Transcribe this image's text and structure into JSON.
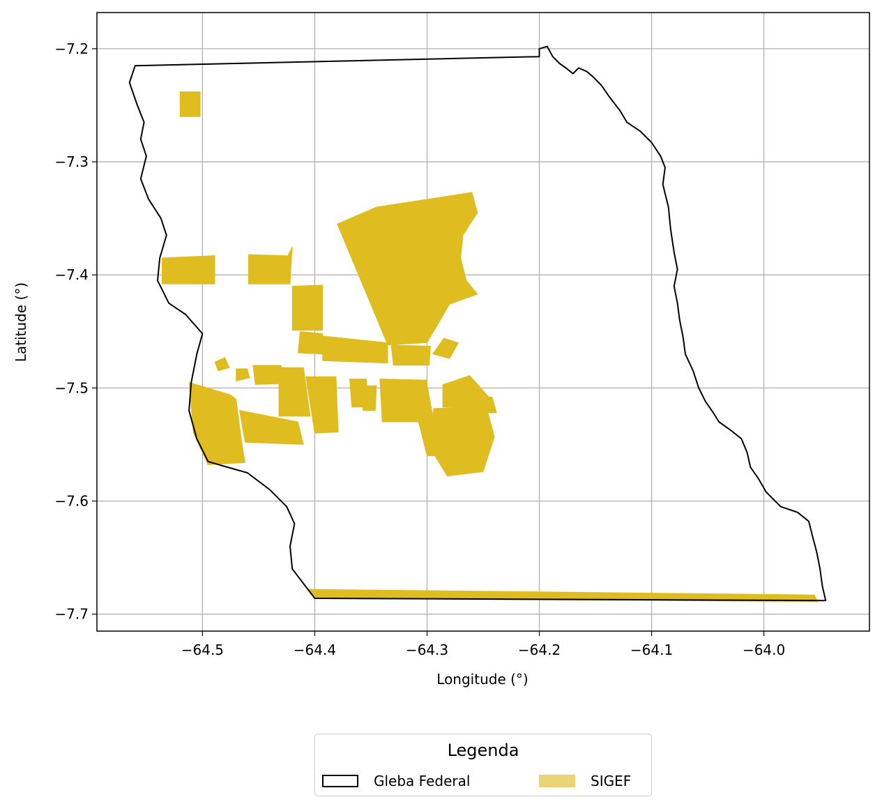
{
  "chart_data": {
    "type": "map",
    "xlabel": "Longitude (°)",
    "ylabel": "Latitude (°)",
    "xlim": [
      -64.594,
      -63.906
    ],
    "ylim": [
      -7.715,
      -7.168
    ],
    "xticks": [
      -64.5,
      -64.4,
      -64.3,
      -64.2,
      -64.1,
      -64.0
    ],
    "yticks": [
      -7.2,
      -7.3,
      -7.4,
      -7.5,
      -7.6,
      -7.7
    ],
    "xtick_labels": [
      "−64.5",
      "−64.4",
      "−64.3",
      "−64.2",
      "−64.1",
      "−64.0"
    ],
    "ytick_labels": [
      "−7.2",
      "−7.3",
      "−7.4",
      "−7.5",
      "−7.6",
      "−7.7"
    ],
    "grid": true,
    "legend_placement": "bottom-center, below plot",
    "layers": [
      {
        "name": "Gleba Federal",
        "style": "outline",
        "color": "#000000",
        "boundary": [
          [
            -64.56,
            -7.215
          ],
          [
            -64.2,
            -7.207
          ],
          [
            -64.2,
            -7.2
          ],
          [
            -64.193,
            -7.198
          ],
          [
            -64.188,
            -7.207
          ],
          [
            -64.182,
            -7.213
          ],
          [
            -64.175,
            -7.218
          ],
          [
            -64.17,
            -7.222
          ],
          [
            -64.165,
            -7.217
          ],
          [
            -64.158,
            -7.22
          ],
          [
            -64.152,
            -7.225
          ],
          [
            -64.145,
            -7.232
          ],
          [
            -64.138,
            -7.242
          ],
          [
            -64.128,
            -7.255
          ],
          [
            -64.122,
            -7.265
          ],
          [
            -64.11,
            -7.273
          ],
          [
            -64.1,
            -7.283
          ],
          [
            -64.092,
            -7.295
          ],
          [
            -64.088,
            -7.305
          ],
          [
            -64.09,
            -7.32
          ],
          [
            -64.085,
            -7.34
          ],
          [
            -64.083,
            -7.36
          ],
          [
            -64.08,
            -7.38
          ],
          [
            -64.077,
            -7.395
          ],
          [
            -64.08,
            -7.41
          ],
          [
            -64.077,
            -7.425
          ],
          [
            -64.075,
            -7.44
          ],
          [
            -64.072,
            -7.455
          ],
          [
            -64.07,
            -7.47
          ],
          [
            -64.063,
            -7.485
          ],
          [
            -64.058,
            -7.5
          ],
          [
            -64.052,
            -7.512
          ],
          [
            -64.045,
            -7.522
          ],
          [
            -64.04,
            -7.53
          ],
          [
            -64.03,
            -7.537
          ],
          [
            -64.02,
            -7.545
          ],
          [
            -64.015,
            -7.557
          ],
          [
            -64.012,
            -7.57
          ],
          [
            -64.005,
            -7.58
          ],
          [
            -63.998,
            -7.592
          ],
          [
            -63.992,
            -7.598
          ],
          [
            -63.985,
            -7.605
          ],
          [
            -63.97,
            -7.61
          ],
          [
            -63.96,
            -7.618
          ],
          [
            -63.957,
            -7.63
          ],
          [
            -63.953,
            -7.645
          ],
          [
            -63.95,
            -7.66
          ],
          [
            -63.948,
            -7.675
          ],
          [
            -63.945,
            -7.688
          ],
          [
            -64.4,
            -7.686
          ],
          [
            -64.42,
            -7.66
          ],
          [
            -64.422,
            -7.64
          ],
          [
            -64.418,
            -7.62
          ],
          [
            -64.425,
            -7.605
          ],
          [
            -64.44,
            -7.59
          ],
          [
            -64.46,
            -7.575
          ],
          [
            -64.478,
            -7.57
          ],
          [
            -64.495,
            -7.565
          ],
          [
            -64.505,
            -7.545
          ],
          [
            -64.512,
            -7.52
          ],
          [
            -64.51,
            -7.495
          ],
          [
            -64.505,
            -7.47
          ],
          [
            -64.5,
            -7.452
          ],
          [
            -64.515,
            -7.435
          ],
          [
            -64.53,
            -7.425
          ],
          [
            -64.54,
            -7.405
          ],
          [
            -64.538,
            -7.385
          ],
          [
            -64.532,
            -7.365
          ],
          [
            -64.537,
            -7.35
          ],
          [
            -64.548,
            -7.333
          ],
          [
            -64.555,
            -7.315
          ],
          [
            -64.55,
            -7.295
          ],
          [
            -64.555,
            -7.28
          ],
          [
            -64.552,
            -7.265
          ],
          [
            -64.558,
            -7.25
          ],
          [
            -64.565,
            -7.23
          ],
          [
            -64.56,
            -7.215
          ]
        ]
      },
      {
        "name": "SIGEF",
        "style": "fill",
        "color": "#dfbc1f",
        "legend_color": "#e9d372",
        "parcels": [
          [
            [
              -64.52,
              -7.238
            ],
            [
              -64.502,
              -7.238
            ],
            [
              -64.502,
              -7.26
            ],
            [
              -64.52,
              -7.26
            ]
          ],
          [
            [
              -64.536,
              -7.385
            ],
            [
              -64.489,
              -7.383
            ],
            [
              -64.489,
              -7.408
            ],
            [
              -64.536,
              -7.408
            ]
          ],
          [
            [
              -64.459,
              -7.382
            ],
            [
              -64.424,
              -7.383
            ],
            [
              -64.42,
              -7.375
            ],
            [
              -64.422,
              -7.408
            ],
            [
              -64.459,
              -7.408
            ]
          ],
          [
            [
              -64.42,
              -7.41
            ],
            [
              -64.393,
              -7.409
            ],
            [
              -64.393,
              -7.449
            ],
            [
              -64.42,
              -7.449
            ]
          ],
          [
            [
              -64.38,
              -7.355
            ],
            [
              -64.345,
              -7.34
            ],
            [
              -64.26,
              -7.327
            ],
            [
              -64.255,
              -7.345
            ],
            [
              -64.268,
              -7.365
            ],
            [
              -64.27,
              -7.385
            ],
            [
              -64.265,
              -7.405
            ],
            [
              -64.255,
              -7.417
            ],
            [
              -64.28,
              -7.426
            ],
            [
              -64.3,
              -7.46
            ],
            [
              -64.335,
              -7.462
            ]
          ],
          [
            [
              -64.393,
              -7.454
            ],
            [
              -64.335,
              -7.46
            ],
            [
              -64.335,
              -7.478
            ],
            [
              -64.393,
              -7.476
            ]
          ],
          [
            [
              -64.413,
              -7.45
            ],
            [
              -64.393,
              -7.452
            ],
            [
              -64.393,
              -7.47
            ],
            [
              -64.415,
              -7.469
            ]
          ],
          [
            [
              -64.332,
              -7.462
            ],
            [
              -64.297,
              -7.463
            ],
            [
              -64.298,
              -7.48
            ],
            [
              -64.33,
              -7.48
            ]
          ],
          [
            [
              -64.285,
              -7.456
            ],
            [
              -64.272,
              -7.46
            ],
            [
              -64.28,
              -7.474
            ],
            [
              -64.295,
              -7.47
            ]
          ],
          [
            [
              -64.47,
              -7.483
            ],
            [
              -64.46,
              -7.483
            ],
            [
              -64.458,
              -7.491
            ],
            [
              -64.47,
              -7.494
            ]
          ],
          [
            [
              -64.455,
              -7.48
            ],
            [
              -64.43,
              -7.48
            ],
            [
              -64.424,
              -7.496
            ],
            [
              -64.453,
              -7.497
            ]
          ],
          [
            [
              -64.489,
              -7.477
            ],
            [
              -64.48,
              -7.473
            ],
            [
              -64.476,
              -7.482
            ],
            [
              -64.486,
              -7.485
            ]
          ],
          [
            [
              -64.512,
              -7.495
            ],
            [
              -64.475,
              -7.506
            ],
            [
              -64.47,
              -7.51
            ],
            [
              -64.465,
              -7.548
            ],
            [
              -64.462,
              -7.566
            ],
            [
              -64.495,
              -7.568
            ],
            [
              -64.508,
              -7.54
            ]
          ],
          [
            [
              -64.467,
              -7.52
            ],
            [
              -64.462,
              -7.548
            ],
            [
              -64.41,
              -7.55
            ],
            [
              -64.415,
              -7.53
            ],
            [
              -64.44,
              -7.525
            ],
            [
              -64.466,
              -7.52
            ]
          ],
          [
            [
              -64.432,
              -7.482
            ],
            [
              -64.41,
              -7.482
            ],
            [
              -64.404,
              -7.525
            ],
            [
              -64.432,
              -7.525
            ]
          ],
          [
            [
              -64.408,
              -7.49
            ],
            [
              -64.381,
              -7.49
            ],
            [
              -64.379,
              -7.539
            ],
            [
              -64.4,
              -7.54
            ]
          ],
          [
            [
              -64.369,
              -7.492
            ],
            [
              -64.354,
              -7.492
            ],
            [
              -64.352,
              -7.517
            ],
            [
              -64.367,
              -7.517
            ]
          ],
          [
            [
              -64.358,
              -7.498
            ],
            [
              -64.345,
              -7.498
            ],
            [
              -64.346,
              -7.52
            ],
            [
              -64.357,
              -7.52
            ]
          ],
          [
            [
              -64.342,
              -7.492
            ],
            [
              -64.3,
              -7.493
            ],
            [
              -64.3,
              -7.53
            ],
            [
              -64.34,
              -7.53
            ]
          ],
          [
            [
              -64.316,
              -7.497
            ],
            [
              -64.3,
              -7.497
            ],
            [
              -64.288,
              -7.56
            ],
            [
              -64.3,
              -7.56
            ]
          ],
          [
            [
              -64.294,
              -7.518
            ],
            [
              -64.247,
              -7.517
            ],
            [
              -64.24,
              -7.543
            ],
            [
              -64.25,
              -7.574
            ],
            [
              -64.282,
              -7.578
            ],
            [
              -64.298,
              -7.552
            ]
          ],
          [
            [
              -64.286,
              -7.497
            ],
            [
              -64.262,
              -7.489
            ],
            [
              -64.244,
              -7.509
            ],
            [
              -64.26,
              -7.518
            ],
            [
              -64.286,
              -7.517
            ]
          ],
          [
            [
              -64.278,
              -7.51
            ],
            [
              -64.242,
              -7.508
            ],
            [
              -64.238,
              -7.522
            ],
            [
              -64.26,
              -7.522
            ]
          ],
          [
            [
              -64.405,
              -7.678
            ],
            [
              -63.955,
              -7.683
            ],
            [
              -63.952,
              -7.689
            ],
            [
              -64.4,
              -7.686
            ]
          ]
        ]
      }
    ]
  },
  "legend": {
    "title": "Legenda",
    "items": [
      {
        "label": "Gleba Federal",
        "swatch_fill": "#ffffff",
        "swatch_stroke": "#000000"
      },
      {
        "label": "SIGEF",
        "swatch_fill": "#e9d372",
        "swatch_stroke": "#e9d372"
      }
    ]
  }
}
